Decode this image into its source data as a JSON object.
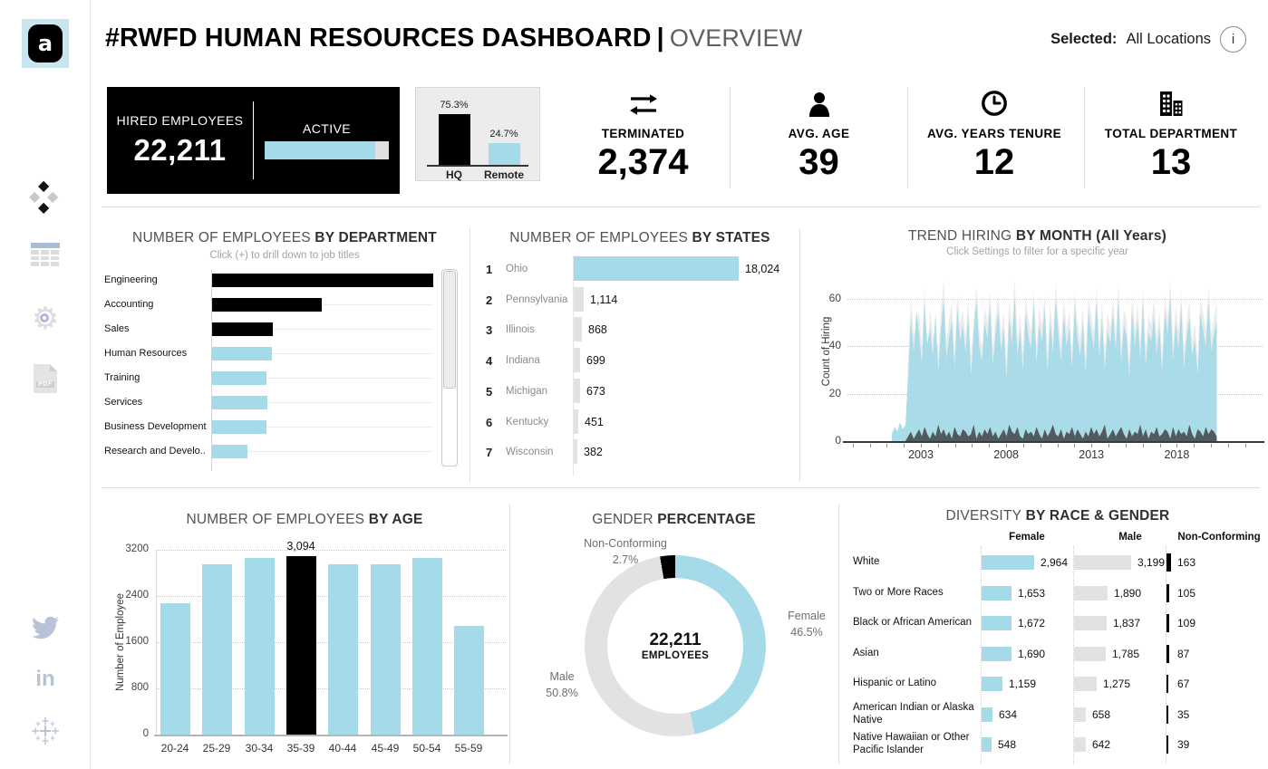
{
  "header": {
    "title": "#RWFD HUMAN RESOURCES DASHBOARD",
    "separator": "|",
    "view_name": "OVERVIEW",
    "selected_label": "Selected:",
    "selected_value": "All Locations",
    "info_glyph": "i"
  },
  "sidebar": {
    "icons": [
      "app-logo",
      "highlight-diamonds",
      "data-table",
      "settings-gear",
      "pdf-export",
      "twitter",
      "linkedin",
      "tableau"
    ],
    "pdf_label": "PDF",
    "linkedin_glyph": "in",
    "logo_glyph": "a"
  },
  "kpi": {
    "hired": {
      "label": "HIRED EMPLOYEES",
      "value": "22,211"
    },
    "active": {
      "label": "ACTIVE",
      "fill_pct": 89.3
    },
    "hq_remote": {
      "bars": [
        {
          "label": "HQ",
          "value_label": "75.3%",
          "pct": 75.3,
          "color": "#000000"
        },
        {
          "label": "Remote",
          "value_label": "24.7%",
          "pct": 24.7,
          "color": "#a5dbe8"
        }
      ]
    },
    "items": [
      {
        "icon": "terminated-arrows-icon",
        "label": "TERMINATED",
        "value": "2,374"
      },
      {
        "icon": "person-icon",
        "label": "AVG. AGE",
        "value": "39"
      },
      {
        "icon": "clock-icon",
        "label": "AVG. YEARS TENURE",
        "value": "12"
      },
      {
        "icon": "buildings-icon",
        "label": "TOTAL DEPARTMENT",
        "value": "13"
      }
    ]
  },
  "panels": {
    "department": {
      "title_normal": "NUMBER OF EMPLOYEES",
      "title_bold": "BY DEPARTMENT",
      "subtitle": "Click (+) to drill down to job titles"
    },
    "states": {
      "title_normal": "NUMBER OF EMPLOYEES",
      "title_bold": "BY STATES"
    },
    "trend": {
      "title_normal": "TREND HIRING",
      "title_bold": "BY MONTH (All Years)",
      "subtitle": "Click Settings to filter for a specific year",
      "ylabel": "Count of Hiring"
    },
    "age": {
      "title_normal": "NUMBER OF EMPLOYEES",
      "title_bold": "BY AGE",
      "ylabel": "Number of Employee"
    },
    "gender": {
      "title_normal": "GENDER",
      "title_bold": "PERCENTAGE"
    },
    "diversity": {
      "title_normal": "DIVERSITY",
      "title_bold": "BY RACE & GENDER"
    }
  },
  "colors": {
    "accent_blue": "#a5dbe8",
    "bar_gray": "#e2e2e2",
    "black": "#000000",
    "area_gray": "#e9e9e9",
    "area_dark": "#474c4e"
  },
  "chart_data": [
    {
      "id": "department",
      "type": "bar",
      "orientation": "horizontal",
      "note": "no numeric labels shown in pixels; values are % of max bar (Engineering)",
      "categories": [
        "Engineering",
        "Accounting",
        "Sales",
        "Human Resources",
        "Training",
        "Services",
        "Business Development",
        "Research and Develo.."
      ],
      "values_pct_of_max": [
        100,
        49.5,
        27.5,
        27,
        24.6,
        25,
        24.4,
        16
      ],
      "bar_colors": [
        "#000000",
        "#000000",
        "#000000",
        "#a5dbe8",
        "#a5dbe8",
        "#a5dbe8",
        "#a5dbe8",
        "#a5dbe8"
      ]
    },
    {
      "id": "states",
      "type": "bar",
      "orientation": "horizontal",
      "ranks": [
        1,
        2,
        3,
        4,
        5,
        6,
        7
      ],
      "categories": [
        "Ohio",
        "Pennsylvania",
        "Illinois",
        "Indiana",
        "Michigan",
        "Kentucky",
        "Wisconsin"
      ],
      "values": [
        18024,
        1114,
        868,
        699,
        673,
        451,
        382
      ],
      "max_color": "#a5dbe8",
      "other_color": "#e2e2e2"
    },
    {
      "id": "trend",
      "type": "area",
      "x_domain": [
        1998.7,
        2022.6
      ],
      "x_ticks": [
        2003,
        2008,
        2013,
        2018
      ],
      "y_ticks": [
        0,
        20,
        40,
        60
      ],
      "ylim": [
        0,
        75
      ],
      "series_start_year": 2001.3,
      "series_step_years": 0.16,
      "series": [
        {
          "name": "overall",
          "color": "#e9e9e9",
          "values": [
            0,
            0,
            0,
            0,
            0,
            0,
            35,
            60,
            45,
            48,
            55,
            40,
            65,
            35,
            56,
            44,
            47,
            38,
            55,
            68,
            42,
            52,
            58,
            38,
            62,
            50,
            55,
            44,
            60,
            36,
            52,
            66,
            47,
            40,
            57,
            50,
            64,
            39,
            52,
            62,
            45,
            55,
            33,
            60,
            48,
            69,
            43,
            54,
            37,
            61,
            52,
            46,
            64,
            40,
            56,
            49,
            62,
            36,
            58,
            44,
            67,
            52,
            41,
            60,
            47,
            55,
            38,
            63,
            50,
            43,
            57,
            35,
            61,
            53,
            46,
            65,
            42,
            59,
            37,
            54,
            48,
            60,
            45,
            67,
            40,
            56,
            51,
            34,
            62,
            47,
            58,
            42,
            64,
            39,
            53,
            49,
            60,
            44,
            55,
            36,
            61,
            52,
            68,
            41,
            57,
            46,
            63,
            38,
            51,
            59,
            43,
            50,
            35,
            60,
            54,
            47,
            65,
            45,
            52,
            58
          ]
        },
        {
          "name": "hired",
          "color": "#a5dbe8",
          "values": [
            3,
            6,
            4,
            8,
            5,
            7,
            27,
            52,
            38,
            55,
            45,
            33,
            58,
            41,
            48,
            36,
            54,
            29,
            47,
            60,
            35,
            44,
            51,
            31,
            56,
            42,
            49,
            37,
            53,
            28,
            46,
            59,
            40,
            34,
            50,
            43,
            57,
            32,
            45,
            55,
            38,
            48,
            26,
            52,
            41,
            61,
            36,
            47,
            30,
            54,
            44,
            39,
            58,
            33,
            49,
            42,
            56,
            29,
            51,
            37,
            60,
            45,
            34,
            53,
            40,
            48,
            31,
            57,
            43,
            36,
            50,
            28,
            55,
            46,
            39,
            59,
            35,
            52,
            30,
            47,
            41,
            54,
            38,
            60,
            33,
            49,
            44,
            27,
            56,
            40,
            51,
            35,
            58,
            32,
            46,
            42,
            53,
            37,
            48,
            29,
            55,
            45,
            61,
            34,
            50,
            39,
            57,
            31,
            44,
            52,
            36,
            43,
            28,
            54,
            47,
            40,
            59,
            38,
            45,
            51
          ]
        },
        {
          "name": "terminated",
          "color": "#474c4e",
          "values": [
            0,
            0,
            0,
            0,
            0,
            0,
            2,
            4,
            1,
            3,
            5,
            2,
            6,
            3,
            1,
            4,
            2,
            7,
            3,
            5,
            2,
            4,
            1,
            6,
            3,
            2,
            5,
            4,
            2,
            3,
            7,
            1,
            4,
            2,
            5,
            3,
            6,
            2,
            4,
            1,
            3,
            5,
            2,
            7,
            4,
            3,
            6,
            2,
            1,
            5,
            3,
            4,
            2,
            6,
            3,
            1,
            5,
            2,
            4,
            7,
            3,
            2,
            5,
            1,
            4,
            3,
            6,
            2,
            5,
            3,
            1,
            4,
            2,
            6,
            3,
            5,
            2,
            4,
            7,
            1,
            3,
            5,
            2,
            4,
            6,
            3,
            1,
            5,
            2,
            4,
            3,
            7,
            2,
            5,
            1,
            4,
            3,
            6,
            2,
            3,
            5,
            4,
            1,
            6,
            2,
            5,
            3,
            4,
            2,
            7,
            3,
            1,
            5,
            4,
            2,
            6,
            3,
            5,
            4,
            2
          ]
        }
      ]
    },
    {
      "id": "age",
      "type": "bar",
      "categories": [
        "20-24",
        "25-29",
        "30-34",
        "35-39",
        "40-44",
        "45-49",
        "50-54",
        "55-59"
      ],
      "values": [
        2280,
        2950,
        3060,
        3094,
        2950,
        2950,
        3060,
        1890
      ],
      "highlight_index": 3,
      "highlight_label": "3,094",
      "highlight_color": "#000000",
      "bar_color": "#a5dbe8",
      "y_ticks": [
        0,
        800,
        1600,
        2400,
        3200
      ],
      "ylim": [
        0,
        3400
      ]
    },
    {
      "id": "gender",
      "type": "pie",
      "donut": true,
      "center_value": "22,211",
      "center_label": "EMPLOYEES",
      "slices": [
        {
          "label": "Female",
          "pct": 46.5,
          "color": "#a5dbe8"
        },
        {
          "label": "Male",
          "pct": 50.8,
          "color": "#e2e2e2"
        },
        {
          "label": "Non-Conforming",
          "pct": 2.7,
          "color": "#000000"
        }
      ]
    },
    {
      "id": "diversity",
      "type": "bar",
      "columns": [
        "Female",
        "Male",
        "Non-Conforming"
      ],
      "categories": [
        "White",
        "Two or More Races",
        "Black or African American",
        "Asian",
        "Hispanic or Latino",
        "American Indian or Alaska Native",
        "Native Hawaiian or Other Pacific Islander"
      ],
      "series": [
        {
          "name": "Female",
          "color": "#a5dbe8",
          "values": [
            2964,
            1653,
            1672,
            1690,
            1159,
            634,
            548
          ]
        },
        {
          "name": "Male",
          "color": "#e2e2e2",
          "values": [
            3199,
            1890,
            1837,
            1785,
            1275,
            658,
            642
          ]
        },
        {
          "name": "Non-Conforming",
          "color": "#000000",
          "values": [
            163,
            105,
            109,
            87,
            67,
            35,
            39
          ]
        }
      ]
    }
  ]
}
